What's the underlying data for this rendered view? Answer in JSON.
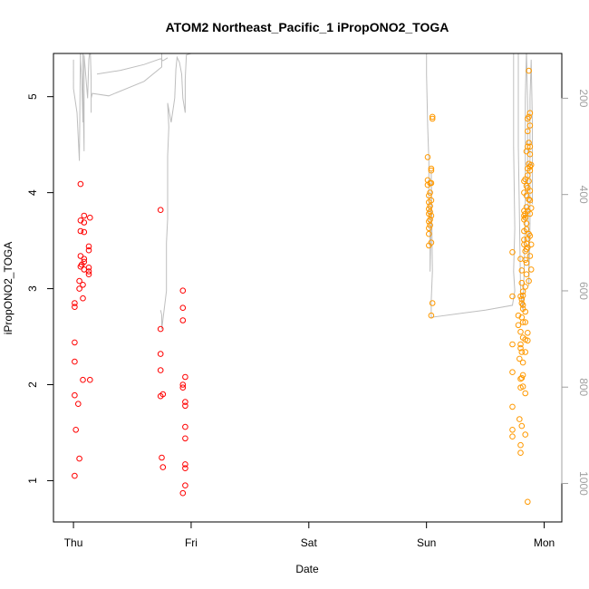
{
  "chart_data": {
    "type": "scatter",
    "title": "ATOM2 Northeast_Pacific_1 iPropONO2_TOGA",
    "xlabel": "Date",
    "ylabel": "iPropONO2_TOGA",
    "x_ticks": [
      "Thu",
      "Fri",
      "Sat",
      "Sun",
      "Mon"
    ],
    "y_ticks": [
      "1",
      "2",
      "3",
      "4",
      "5"
    ],
    "y2_ticks": [
      "200",
      "400",
      "600",
      "800",
      "1000"
    ],
    "xlim": [
      -0.17,
      4.15
    ],
    "ylim": [
      0.57,
      5.45
    ],
    "y2lim": [
      1080,
      107
    ],
    "colors": {
      "series_red": "#ff0000",
      "series_orange": "#ff9900",
      "altitude_line": "#bebebe",
      "axis": "#000000",
      "right_axis": "#a0a0a0"
    },
    "series": [
      {
        "color": "#ff0000",
        "points": [
          [
            0.01,
            1.05
          ],
          [
            0.01,
            1.89
          ],
          [
            0.01,
            2.24
          ],
          [
            0.01,
            2.44
          ],
          [
            0.01,
            2.81
          ],
          [
            0.01,
            2.85
          ],
          [
            0.02,
            1.53
          ],
          [
            0.04,
            1.8
          ],
          [
            0.05,
            1.23
          ],
          [
            0.05,
            3.0
          ],
          [
            0.05,
            3.08
          ],
          [
            0.06,
            3.6
          ],
          [
            0.06,
            3.71
          ],
          [
            0.06,
            4.09
          ],
          [
            0.06,
            3.34
          ],
          [
            0.06,
            3.23
          ],
          [
            0.07,
            3.25
          ],
          [
            0.08,
            3.04
          ],
          [
            0.08,
            2.9
          ],
          [
            0.08,
            2.05
          ],
          [
            0.09,
            3.69
          ],
          [
            0.09,
            3.59
          ],
          [
            0.09,
            3.28
          ],
          [
            0.09,
            3.2
          ],
          [
            0.09,
            3.31
          ],
          [
            0.09,
            3.76
          ],
          [
            0.13,
            3.15
          ],
          [
            0.13,
            3.18
          ],
          [
            0.13,
            3.22
          ],
          [
            0.13,
            3.4
          ],
          [
            0.13,
            3.44
          ],
          [
            0.14,
            3.74
          ],
          [
            0.14,
            2.05
          ],
          [
            0.74,
            3.82
          ],
          [
            0.74,
            2.58
          ],
          [
            0.74,
            2.32
          ],
          [
            0.74,
            2.15
          ],
          [
            0.74,
            1.88
          ],
          [
            0.75,
            1.24
          ],
          [
            0.76,
            1.9
          ],
          [
            0.76,
            1.14
          ],
          [
            0.93,
            2.98
          ],
          [
            0.93,
            2.8
          ],
          [
            0.93,
            2.67
          ],
          [
            0.93,
            1.97
          ],
          [
            0.93,
            2.0
          ],
          [
            0.93,
            0.87
          ],
          [
            0.95,
            2.08
          ],
          [
            0.95,
            1.82
          ],
          [
            0.95,
            1.78
          ],
          [
            0.95,
            1.56
          ],
          [
            0.95,
            1.44
          ],
          [
            0.95,
            1.17
          ],
          [
            0.95,
            1.13
          ],
          [
            0.95,
            0.95
          ]
        ]
      },
      {
        "color": "#ff9900",
        "points": [
          [
            3.01,
            4.37
          ],
          [
            3.01,
            4.13
          ],
          [
            3.01,
            4.08
          ],
          [
            3.02,
            3.97
          ],
          [
            3.02,
            3.9
          ],
          [
            3.02,
            3.83
          ],
          [
            3.02,
            3.78
          ],
          [
            3.02,
            3.7
          ],
          [
            3.02,
            3.63
          ],
          [
            3.02,
            3.57
          ],
          [
            3.02,
            3.45
          ],
          [
            3.03,
            4.1
          ],
          [
            3.03,
            4.0
          ],
          [
            3.03,
            3.86
          ],
          [
            3.03,
            3.8
          ],
          [
            3.03,
            3.72
          ],
          [
            3.03,
            3.66
          ],
          [
            3.04,
            4.25
          ],
          [
            3.04,
            4.23
          ],
          [
            3.04,
            4.1
          ],
          [
            3.04,
            3.92
          ],
          [
            3.04,
            3.76
          ],
          [
            3.04,
            3.48
          ],
          [
            3.04,
            2.72
          ],
          [
            3.05,
            4.79
          ],
          [
            3.05,
            4.77
          ],
          [
            3.05,
            2.85
          ],
          [
            3.73,
            3.38
          ],
          [
            3.73,
            2.92
          ],
          [
            3.73,
            2.42
          ],
          [
            3.73,
            2.13
          ],
          [
            3.73,
            1.77
          ],
          [
            3.73,
            1.53
          ],
          [
            3.73,
            1.46
          ],
          [
            3.78,
            2.72
          ],
          [
            3.78,
            2.62
          ],
          [
            3.79,
            2.27
          ],
          [
            3.79,
            1.64
          ],
          [
            3.8,
            3.31
          ],
          [
            3.8,
            2.92
          ],
          [
            3.8,
            2.55
          ],
          [
            3.8,
            2.42
          ],
          [
            3.8,
            2.38
          ],
          [
            3.8,
            2.06
          ],
          [
            3.8,
            1.97
          ],
          [
            3.8,
            1.37
          ],
          [
            3.8,
            1.29
          ],
          [
            3.81,
            3.19
          ],
          [
            3.81,
            3.06
          ],
          [
            3.81,
            2.89
          ],
          [
            3.81,
            2.85
          ],
          [
            3.81,
            2.7
          ],
          [
            3.81,
            2.34
          ],
          [
            3.81,
            2.07
          ],
          [
            3.81,
            1.57
          ],
          [
            3.82,
            2.97
          ],
          [
            3.82,
            2.93
          ],
          [
            3.82,
            2.83
          ],
          [
            3.82,
            2.79
          ],
          [
            3.82,
            2.65
          ],
          [
            3.82,
            2.49
          ],
          [
            3.82,
            2.23
          ],
          [
            3.82,
            2.1
          ],
          [
            3.82,
            1.98
          ],
          [
            3.83,
            4.12
          ],
          [
            3.83,
            4.0
          ],
          [
            3.83,
            3.81
          ],
          [
            3.83,
            3.76
          ],
          [
            3.83,
            3.72
          ],
          [
            3.83,
            3.6
          ],
          [
            3.83,
            3.51
          ],
          [
            3.83,
            3.46
          ],
          [
            3.84,
            4.14
          ],
          [
            3.84,
            3.78
          ],
          [
            3.84,
            3.74
          ],
          [
            3.84,
            3.39
          ],
          [
            3.84,
            3.3
          ],
          [
            3.84,
            3.02
          ],
          [
            3.84,
            2.76
          ],
          [
            3.84,
            2.65
          ],
          [
            3.84,
            2.47
          ],
          [
            3.84,
            2.34
          ],
          [
            3.84,
            1.91
          ],
          [
            3.84,
            1.48
          ],
          [
            3.85,
            4.43
          ],
          [
            3.85,
            4.07
          ],
          [
            3.85,
            3.97
          ],
          [
            3.85,
            3.85
          ],
          [
            3.85,
            3.68
          ],
          [
            3.85,
            3.62
          ],
          [
            3.85,
            3.47
          ],
          [
            3.85,
            3.41
          ],
          [
            3.85,
            3.27
          ],
          [
            3.85,
            3.15
          ],
          [
            3.86,
            4.77
          ],
          [
            3.86,
            4.64
          ],
          [
            3.86,
            4.48
          ],
          [
            3.86,
            4.25
          ],
          [
            3.86,
            4.18
          ],
          [
            3.86,
            4.05
          ],
          [
            3.86,
            3.81
          ],
          [
            3.86,
            3.52
          ],
          [
            3.86,
            3.43
          ],
          [
            3.86,
            2.54
          ],
          [
            3.86,
            2.46
          ],
          [
            3.86,
            0.78
          ],
          [
            3.87,
            5.27
          ],
          [
            3.87,
            4.79
          ],
          [
            3.87,
            4.52
          ],
          [
            3.87,
            4.3
          ],
          [
            3.87,
            4.12
          ],
          [
            3.87,
            3.93
          ],
          [
            3.87,
            3.57
          ],
          [
            3.87,
            3.08
          ],
          [
            3.88,
            4.83
          ],
          [
            3.88,
            4.7
          ],
          [
            3.88,
            4.48
          ],
          [
            3.88,
            4.4
          ],
          [
            3.88,
            4.27
          ],
          [
            3.88,
            4.23
          ],
          [
            3.88,
            4.02
          ],
          [
            3.88,
            3.92
          ],
          [
            3.88,
            3.78
          ],
          [
            3.88,
            3.55
          ],
          [
            3.88,
            3.34
          ],
          [
            3.89,
            4.29
          ],
          [
            3.89,
            3.84
          ],
          [
            3.89,
            3.46
          ],
          [
            3.89,
            3.2
          ]
        ]
      }
    ],
    "altitude_lines": [
      [
        [
          0.0,
          120
        ],
        [
          0.0,
          180
        ],
        [
          0.03,
          230
        ],
        [
          0.05,
          330
        ],
        [
          0.06,
          80
        ],
        [
          0.06,
          120
        ],
        [
          0.07,
          160
        ],
        [
          0.08,
          250
        ],
        [
          0.08,
          100
        ],
        [
          0.08,
          180
        ],
        [
          0.09,
          310
        ],
        [
          0.09,
          110
        ],
        [
          0.11,
          170
        ],
        [
          0.12,
          200
        ],
        [
          0.13,
          120
        ],
        [
          0.14,
          100
        ],
        [
          0.14,
          80
        ],
        [
          0.15,
          160
        ],
        [
          0.15,
          210
        ],
        [
          0.15,
          230
        ],
        [
          0.15,
          200
        ],
        [
          0.16,
          190
        ],
        [
          0.3,
          195
        ],
        [
          0.6,
          165
        ],
        [
          0.75,
          135
        ],
        [
          0.75,
          100
        ]
      ],
      [
        [
          0.2,
          150
        ],
        [
          0.4,
          142
        ],
        [
          0.6,
          130
        ],
        [
          0.74,
          118
        ],
        [
          0.76,
          122
        ],
        [
          0.8,
          116
        ]
      ],
      [
        [
          0.74,
          640
        ],
        [
          0.75,
          650
        ],
        [
          0.75,
          680
        ],
        [
          0.77,
          640
        ],
        [
          0.79,
          600
        ],
        [
          0.79,
          560
        ],
        [
          0.79,
          500
        ],
        [
          0.8,
          450
        ],
        [
          0.8,
          320
        ],
        [
          0.81,
          260
        ],
        [
          0.8,
          210
        ],
        [
          0.83,
          250
        ],
        [
          0.86,
          200
        ],
        [
          0.87,
          140
        ],
        [
          0.88,
          115
        ],
        [
          0.9,
          125
        ],
        [
          0.92,
          150
        ],
        [
          0.93,
          200
        ],
        [
          0.95,
          230
        ],
        [
          0.95,
          160
        ],
        [
          0.96,
          110
        ],
        [
          1.0,
          107
        ],
        [
          1.35,
          107
        ]
      ],
      [
        [
          3.0,
          100
        ],
        [
          3.0,
          150
        ],
        [
          3.01,
          260
        ],
        [
          3.02,
          330
        ],
        [
          3.02,
          400
        ],
        [
          3.02,
          420
        ],
        [
          3.03,
          500
        ],
        [
          3.03,
          540
        ],
        [
          3.03,
          560
        ],
        [
          3.04,
          450
        ],
        [
          3.04,
          390
        ],
        [
          3.04,
          350
        ],
        [
          3.05,
          560
        ],
        [
          3.04,
          620
        ],
        [
          3.04,
          655
        ],
        [
          3.5,
          640
        ],
        [
          3.73,
          630
        ],
        [
          3.75,
          600
        ],
        [
          3.74,
          560
        ],
        [
          3.75,
          470
        ],
        [
          3.74,
          300
        ],
        [
          3.74,
          150
        ],
        [
          3.74,
          100
        ]
      ],
      [
        [
          3.78,
          100
        ],
        [
          3.78,
          300
        ],
        [
          3.79,
          450
        ],
        [
          3.8,
          600
        ],
        [
          3.82,
          640
        ],
        [
          3.83,
          560
        ],
        [
          3.84,
          430
        ],
        [
          3.84,
          200
        ],
        [
          3.85,
          100
        ],
        [
          3.86,
          220
        ],
        [
          3.86,
          360
        ],
        [
          3.87,
          520
        ],
        [
          3.87,
          590
        ],
        [
          3.88,
          460
        ],
        [
          3.88,
          330
        ],
        [
          3.88,
          200
        ],
        [
          3.89,
          120
        ],
        [
          3.9,
          250
        ],
        [
          3.9,
          420
        ]
      ]
    ]
  }
}
